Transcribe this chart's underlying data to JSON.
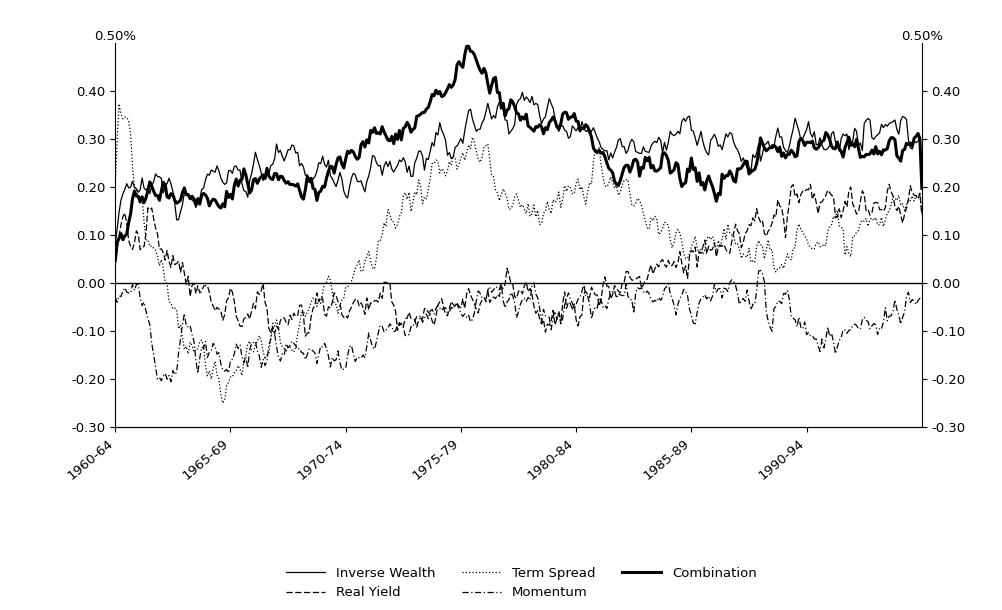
{
  "ylim": [
    -0.3,
    0.5
  ],
  "yticks": [
    -0.3,
    -0.2,
    -0.1,
    0.0,
    0.1,
    0.2,
    0.3,
    0.4
  ],
  "ytop_label": "0.50%",
  "xtick_positions": [
    0,
    60,
    120,
    180,
    240,
    300,
    360
  ],
  "xtick_labels": [
    "1960-64",
    "1965-69",
    "1970-74",
    "1975-79",
    "1980-84",
    "1985-89",
    "1990-94"
  ],
  "n_points": 421,
  "background_color": "#ffffff"
}
